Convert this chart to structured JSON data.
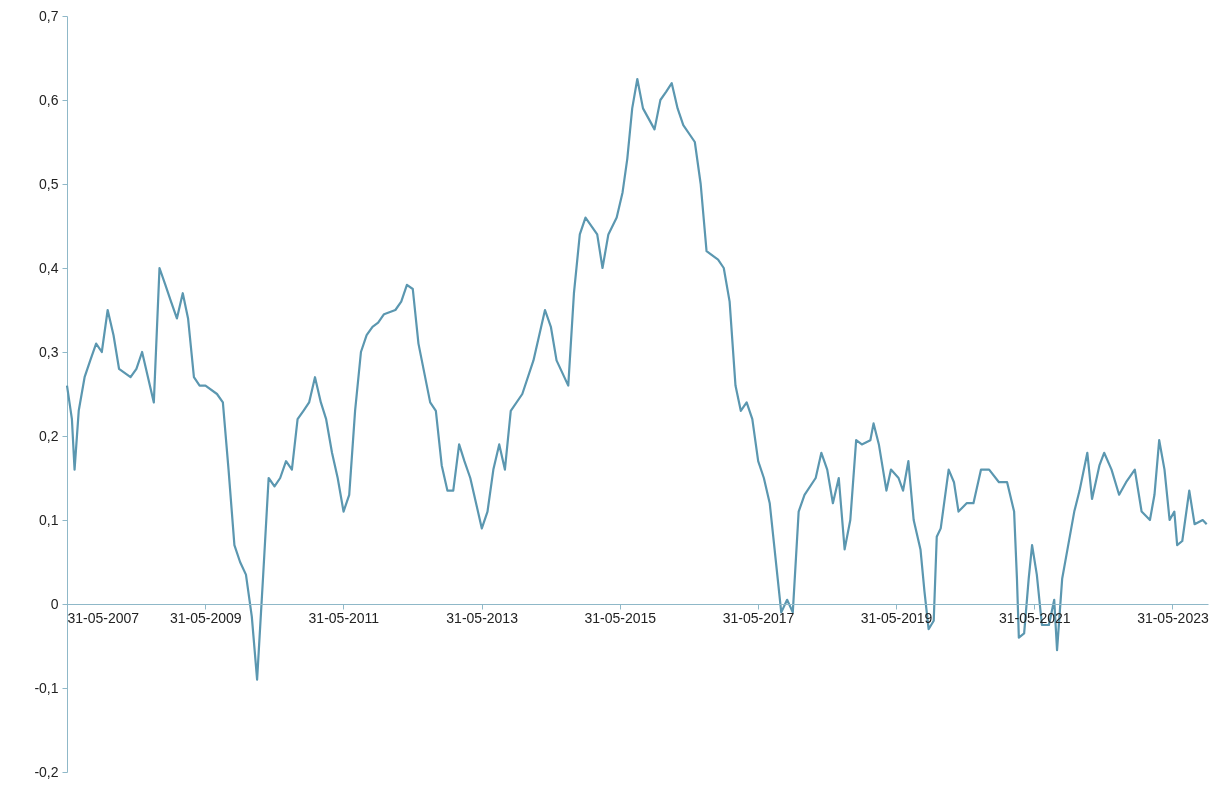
{
  "chart_data": {
    "type": "line",
    "x": [
      "2007-05-31",
      "2007-06-26",
      "2007-07-10",
      "2007-08-01",
      "2007-09-01",
      "2007-10-01",
      "2007-11-01",
      "2007-12-01",
      "2008-01-01",
      "2008-02-01",
      "2008-03-01",
      "2008-05-01",
      "2008-06-01",
      "2008-07-01",
      "2008-08-01",
      "2008-09-01",
      "2008-10-01",
      "2008-11-01",
      "2008-12-01",
      "2009-01-01",
      "2009-02-01",
      "2009-03-01",
      "2009-04-01",
      "2009-05-01",
      "2009-06-01",
      "2009-08-01",
      "2009-09-01",
      "2009-10-01",
      "2009-11-01",
      "2009-12-01",
      "2010-01-01",
      "2010-02-01",
      "2010-03-01",
      "2010-04-01",
      "2010-05-01",
      "2010-06-01",
      "2010-07-01",
      "2010-08-01",
      "2010-09-01",
      "2010-10-01",
      "2010-11-01",
      "2010-12-01",
      "2011-01-01",
      "2011-02-01",
      "2011-03-01",
      "2011-04-01",
      "2011-05-01",
      "2011-06-01",
      "2011-07-01",
      "2011-08-01",
      "2011-09-01",
      "2011-10-01",
      "2011-11-01",
      "2011-12-01",
      "2012-01-01",
      "2012-03-01",
      "2012-04-01",
      "2012-05-01",
      "2012-06-01",
      "2012-07-01",
      "2012-09-01",
      "2012-10-01",
      "2012-11-01",
      "2012-12-01",
      "2013-01-01",
      "2013-02-01",
      "2013-03-01",
      "2013-04-01",
      "2013-06-01",
      "2013-07-01",
      "2013-08-01",
      "2013-09-01",
      "2013-10-01",
      "2013-11-01",
      "2014-01-01",
      "2014-03-01",
      "2014-05-01",
      "2014-06-01",
      "2014-07-01",
      "2014-09-01",
      "2014-10-01",
      "2014-11-01",
      "2014-12-01",
      "2015-02-01",
      "2015-03-01",
      "2015-04-01",
      "2015-05-15",
      "2015-06-15",
      "2015-07-10",
      "2015-08-05",
      "2015-09-01",
      "2015-10-01",
      "2015-12-01",
      "2016-01-01",
      "2016-02-01",
      "2016-03-01",
      "2016-04-01",
      "2016-05-01",
      "2016-07-01",
      "2016-08-01",
      "2016-09-01",
      "2016-11-01",
      "2016-12-01",
      "2017-01-01",
      "2017-02-01",
      "2017-03-01",
      "2017-04-01",
      "2017-05-01",
      "2017-06-01",
      "2017-07-01",
      "2017-08-01",
      "2017-10-01",
      "2017-11-01",
      "2017-12-01",
      "2018-01-01",
      "2018-02-01",
      "2018-04-01",
      "2018-05-01",
      "2018-06-01",
      "2018-07-01",
      "2018-08-01",
      "2018-09-01",
      "2018-10-01",
      "2018-11-01",
      "2018-12-01",
      "2019-01-15",
      "2019-02-01",
      "2019-03-01",
      "2019-04-10",
      "2019-05-04",
      "2019-06-13",
      "2019-07-07",
      "2019-08-04",
      "2019-09-01",
      "2019-10-07",
      "2019-10-28",
      "2019-11-19",
      "2019-12-16",
      "2020-01-01",
      "2020-01-22",
      "2020-03-04",
      "2020-04-01",
      "2020-04-25",
      "2020-06-07",
      "2020-07-13",
      "2020-08-22",
      "2020-10-04",
      "2020-11-25",
      "2021-01-07",
      "2021-02-13",
      "2021-02-28",
      "2021-03-10",
      "2021-04-07",
      "2021-05-01",
      "2021-05-19",
      "2021-06-13",
      "2021-07-10",
      "2021-08-16",
      "2021-09-13",
      "2021-09-28",
      "2021-10-25",
      "2021-11-22",
      "2021-12-28",
      "2022-01-25",
      "2022-03-07",
      "2022-04-01",
      "2022-05-10",
      "2022-06-04",
      "2022-07-13",
      "2022-08-22",
      "2022-09-28",
      "2022-11-13",
      "2022-12-19",
      "2023-02-01",
      "2023-02-25",
      "2023-03-22",
      "2023-04-19",
      "2023-05-16",
      "2023-06-10",
      "2023-06-25",
      "2023-07-22",
      "2023-08-28",
      "2023-09-25",
      "2023-11-07",
      "2023-11-28"
    ],
    "series": [
      {
        "color": "#5b97b0",
        "values": [
          0.26,
          0.22,
          0.16,
          0.23,
          0.27,
          0.29,
          0.31,
          0.3,
          0.35,
          0.32,
          0.28,
          0.27,
          0.28,
          0.3,
          0.27,
          0.24,
          0.4,
          0.38,
          0.36,
          0.34,
          0.37,
          0.34,
          0.27,
          0.26,
          0.26,
          0.25,
          0.24,
          0.16,
          0.07,
          0.05,
          0.035,
          -0.015,
          -0.09,
          0.03,
          0.15,
          0.14,
          0.15,
          0.17,
          0.16,
          0.22,
          0.23,
          0.24,
          0.27,
          0.24,
          0.22,
          0.18,
          0.15,
          0.11,
          0.13,
          0.23,
          0.3,
          0.32,
          0.33,
          0.335,
          0.345,
          0.35,
          0.36,
          0.38,
          0.375,
          0.31,
          0.24,
          0.23,
          0.165,
          0.135,
          0.135,
          0.19,
          0.17,
          0.15,
          0.09,
          0.11,
          0.16,
          0.19,
          0.16,
          0.23,
          0.25,
          0.29,
          0.35,
          0.33,
          0.29,
          0.26,
          0.37,
          0.44,
          0.46,
          0.44,
          0.4,
          0.44,
          0.46,
          0.49,
          0.53,
          0.59,
          0.625,
          0.59,
          0.565,
          0.6,
          0.61,
          0.62,
          0.59,
          0.57,
          0.55,
          0.5,
          0.42,
          0.41,
          0.4,
          0.36,
          0.26,
          0.23,
          0.24,
          0.22,
          0.17,
          0.15,
          0.12,
          -0.01,
          0.005,
          -0.01,
          0.11,
          0.13,
          0.15,
          0.18,
          0.16,
          0.12,
          0.15,
          0.065,
          0.1,
          0.195,
          0.19,
          0.195,
          0.215,
          0.19,
          0.135,
          0.16,
          0.15,
          0.135,
          0.17,
          0.1,
          0.065,
          0.015,
          -0.03,
          -0.02,
          0.08,
          0.09,
          0.16,
          0.145,
          0.11,
          0.12,
          0.12,
          0.16,
          0.16,
          0.145,
          0.145,
          0.11,
          0.03,
          -0.04,
          -0.035,
          0.03,
          0.07,
          0.035,
          -0.025,
          -0.025,
          0.005,
          -0.055,
          0.03,
          0.065,
          0.11,
          0.135,
          0.18,
          0.125,
          0.165,
          0.18,
          0.16,
          0.13,
          0.145,
          0.16,
          0.11,
          0.1,
          0.13,
          0.195,
          0.16,
          0.1,
          0.11,
          0.07,
          0.075,
          0.135,
          0.095,
          0.1,
          0.095
        ]
      }
    ],
    "xlim": [
      "2007-05-31",
      "2023-12-05"
    ],
    "xticks": [
      {
        "value": "2007-05-31",
        "label": "31-05-2007"
      },
      {
        "value": "2009-05-31",
        "label": "31-05-2009"
      },
      {
        "value": "2011-05-31",
        "label": "31-05-2011"
      },
      {
        "value": "2013-05-31",
        "label": "31-05-2013"
      },
      {
        "value": "2015-05-31",
        "label": "31-05-2015"
      },
      {
        "value": "2017-05-31",
        "label": "31-05-2017"
      },
      {
        "value": "2019-05-31",
        "label": "31-05-2019"
      },
      {
        "value": "2021-05-31",
        "label": "31-05-2021"
      },
      {
        "value": "2023-05-31",
        "label": "31-05-2023"
      }
    ],
    "ylim": [
      -0.2,
      0.7
    ],
    "yticks": [
      {
        "value": -0.2,
        "label": "-0,2"
      },
      {
        "value": -0.1,
        "label": "-0,1"
      },
      0,
      {
        "value": 0.1,
        "label": "0,1"
      },
      {
        "value": 0.2,
        "label": "0,2"
      },
      {
        "value": 0.3,
        "label": "0,3"
      },
      {
        "value": 0.4,
        "label": "0,4"
      },
      {
        "value": 0.5,
        "label": "0,5"
      },
      {
        "value": 0.6,
        "label": "0,6"
      },
      {
        "value": 0.7,
        "label": "0,7"
      }
    ],
    "grid": false,
    "marker": "none",
    "line_style": "solid"
  }
}
